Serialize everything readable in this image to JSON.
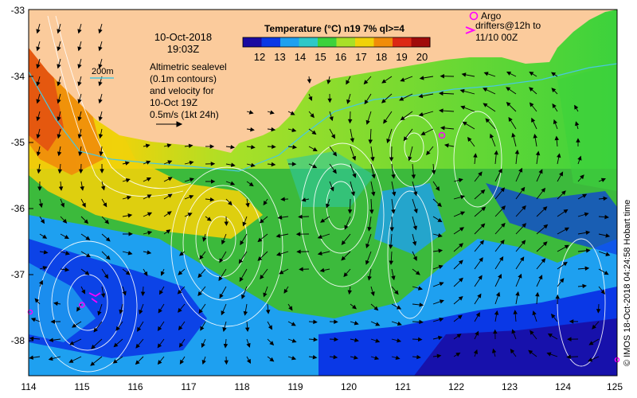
{
  "map": {
    "date": "10-Oct-2018",
    "time": "19:03Z",
    "legend_title": "Temperature (°C) n19 7% ql>=4",
    "colorbar": {
      "ticks": [
        "12",
        "13",
        "14",
        "15",
        "16",
        "17",
        "18",
        "19",
        "20"
      ],
      "colors": [
        "#1a0aa0",
        "#0a38e6",
        "#1ea0f0",
        "#2ec8c8",
        "#3cd23c",
        "#a8e028",
        "#f0d20a",
        "#f08c0a",
        "#dc2814",
        "#a00a0a"
      ]
    },
    "isobath_label": "200m",
    "sealevel_note": [
      "Altimetric sealevel",
      "(0.1m contours)",
      "and velocity for",
      "10-Oct 19Z"
    ],
    "scale_label": "0.5m/s (1kt 24h)",
    "argo_label": "Argo",
    "drifter_label": [
      "drifters@12h to",
      "11/10 00Z"
    ],
    "credit": "© IMOS 18-Oct-2018 04:24:58 Hobart time",
    "lat_labels": [
      "-33",
      "-34",
      "-35",
      "-36",
      "-37",
      "-38"
    ],
    "lon_labels": [
      "114",
      "115",
      "116",
      "117",
      "118",
      "119",
      "120",
      "121",
      "122",
      "123",
      "124",
      "125"
    ],
    "colors": {
      "land": "#fbcb9c",
      "marker": "#ff00ff",
      "contour": "#ffffff",
      "isobath": "#48c8e0"
    }
  }
}
